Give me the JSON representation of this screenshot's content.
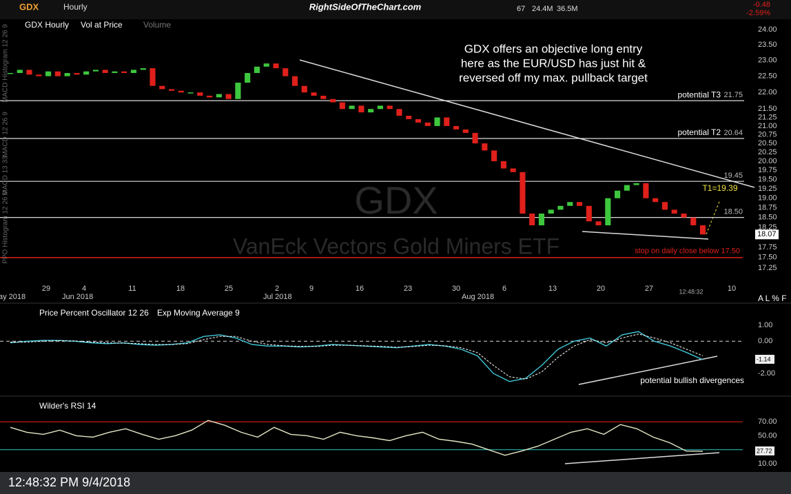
{
  "toolbar": {
    "symbol": "GDX",
    "interval": "Hourly",
    "site": "RightSideOfTheChart.com",
    "stats": [
      "67",
      "24.4M",
      "36.5M"
    ],
    "change": "-0.48",
    "change_pct": "-2.59%"
  },
  "chart_data": [
    {
      "type": "candlestick",
      "legend": [
        "GDX Hourly",
        "Vol at Price",
        "Volume"
      ],
      "watermark": "GDX",
      "watermark_sub": "VanEck Vectors Gold Miners ETF",
      "annotation": [
        "GDX offers an objective long entry",
        "here as the EUR/USD has just hit &",
        "reversed off my max. pullback target"
      ],
      "side_labels": [
        "MACD Histogram 12 26 9",
        "MACD 12 26 9",
        "MACD 13 33",
        "PPO Histogram 12 26 9"
      ],
      "log_scale": true,
      "ylim": [
        17.15,
        24.3
      ],
      "yticks": [
        {
          "value": 24,
          "label": "24.00"
        },
        {
          "value": 23.5,
          "label": "23.50"
        },
        {
          "value": 23,
          "label": "23.00"
        },
        {
          "value": 22.5,
          "label": "22.50"
        },
        {
          "value": 22,
          "label": "22.00"
        },
        {
          "value": 21.5,
          "label": "21.50"
        },
        {
          "value": 21.25,
          "label": "21.25"
        },
        {
          "value": 21,
          "label": "21.00"
        },
        {
          "value": 20.75,
          "label": "20.75"
        },
        {
          "value": 20.5,
          "label": "20.50"
        },
        {
          "value": 20.25,
          "label": "20.25"
        },
        {
          "value": 20,
          "label": "20.00"
        },
        {
          "value": 19.75,
          "label": "19.75"
        },
        {
          "value": 19.5,
          "label": "19.50"
        },
        {
          "value": 19.25,
          "label": "19.25"
        },
        {
          "value": 19,
          "label": "19.00"
        },
        {
          "value": 18.75,
          "label": "18.75"
        },
        {
          "value": 18.5,
          "label": "18.50"
        },
        {
          "value": 18.25,
          "label": "18.25"
        },
        {
          "value": 17.75,
          "label": "17.75"
        },
        {
          "value": 17.5,
          "label": "17.50"
        },
        {
          "value": 17.25,
          "label": "17.25"
        }
      ],
      "levels": [
        {
          "name": "potential T3",
          "value": 21.75
        },
        {
          "name": "potential T2",
          "value": 20.64
        },
        {
          "value": 19.45
        },
        {
          "value": 18.5,
          "value_label": "18.50"
        }
      ],
      "target": "T1=19.39",
      "stop": {
        "value": 17.5,
        "text": "stop on daily close below 17.50",
        "color": "#e0201b"
      },
      "last": 18.07,
      "up_color": "#3ec73e",
      "down_color": "#e0201b",
      "closes": [
        22.6,
        22.7,
        22.55,
        22.5,
        22.65,
        22.5,
        22.6,
        22.55,
        22.65,
        22.7,
        22.6,
        22.65,
        22.6,
        22.7,
        22.75,
        22.2,
        22.1,
        22.05,
        22.0,
        22.0,
        21.9,
        21.85,
        21.95,
        21.8,
        22.3,
        22.6,
        22.8,
        22.9,
        22.75,
        22.5,
        22.2,
        22.0,
        21.9,
        21.8,
        21.7,
        21.5,
        21.6,
        21.4,
        21.5,
        21.6,
        21.5,
        21.3,
        21.2,
        21.1,
        21.0,
        21.25,
        21.0,
        20.9,
        20.8,
        20.5,
        20.3,
        20.0,
        19.8,
        19.7,
        18.6,
        18.3,
        18.6,
        18.7,
        18.8,
        18.9,
        18.8,
        18.4,
        18.3,
        19.0,
        19.2,
        19.35,
        19.4,
        19.0,
        18.9,
        18.7,
        18.6,
        18.5,
        18.3,
        18.07
      ],
      "day_labels": [
        "29",
        "4",
        "11",
        "18",
        "25",
        "2",
        "9",
        "16",
        "23",
        "30",
        "6",
        "13",
        "20",
        "27",
        "10"
      ],
      "month_labels": [
        "ay 2018",
        "Jun 2018",
        "Jul 2018",
        "Aug 2018"
      ],
      "time_label": "12:48:32",
      "axis_buttons": "A L % F"
    },
    {
      "type": "line",
      "legend": [
        "Price Percent Oscillator 12 26",
        "Exp Moving Average 9"
      ],
      "annotation": "potential bullish divergences",
      "ylim": [
        -2.85,
        1.38
      ],
      "yticks": [
        {
          "value": 1,
          "label": "1.00"
        },
        {
          "value": 0,
          "label": "0.00"
        },
        {
          "value": -2,
          "label": "-2.00"
        }
      ],
      "last": -1.14,
      "series": [
        {
          "name": "Price Percent Oscillator 12 26",
          "color": "#3fc8d8",
          "values": [
            -0.1,
            0,
            0.05,
            0.05,
            0,
            -0.1,
            -0.15,
            -0.1,
            -0.2,
            -0.25,
            -0.2,
            -0.1,
            0.3,
            0.4,
            0.2,
            -0.2,
            -0.3,
            -0.3,
            -0.35,
            -0.3,
            -0.2,
            -0.25,
            -0.3,
            -0.35,
            -0.4,
            -0.3,
            -0.2,
            -0.3,
            -0.5,
            -0.9,
            -2.0,
            -2.5,
            -2.3,
            -1.5,
            -0.5,
            0.0,
            0.2,
            -0.3,
            0.4,
            0.6,
            0.0,
            -0.3,
            -0.7,
            -1.14
          ]
        },
        {
          "name": "Exp Moving Average 9",
          "color": "#ffffff",
          "values": [
            -0.05,
            -0.05,
            0,
            0.03,
            0.02,
            -0.05,
            -0.1,
            -0.12,
            -0.15,
            -0.2,
            -0.2,
            -0.15,
            0.1,
            0.3,
            0.3,
            0.0,
            -0.2,
            -0.28,
            -0.32,
            -0.32,
            -0.25,
            -0.25,
            -0.28,
            -0.32,
            -0.37,
            -0.33,
            -0.25,
            -0.28,
            -0.4,
            -0.7,
            -1.5,
            -2.2,
            -2.35,
            -1.9,
            -1.0,
            -0.3,
            0.1,
            -0.1,
            0.2,
            0.45,
            0.2,
            -0.1,
            -0.5,
            -0.9
          ]
        }
      ]
    },
    {
      "type": "line",
      "legend": [
        "Wilder's RSI 14"
      ],
      "ylim": [
        5,
        84
      ],
      "yticks": [
        {
          "value": 70,
          "label": "70.00"
        },
        {
          "value": 50,
          "label": "50.00"
        },
        {
          "value": 10,
          "label": "10.00"
        }
      ],
      "bands": [
        {
          "value": 70,
          "color": "#d81e1e"
        },
        {
          "value": 30,
          "color": "#1fb5b0"
        }
      ],
      "last": 27.72,
      "series": [
        {
          "name": "Wilder's RSI 14",
          "color": "#e8e8c8",
          "values": [
            62,
            55,
            52,
            58,
            50,
            48,
            55,
            60,
            52,
            45,
            50,
            58,
            72,
            65,
            55,
            48,
            62,
            52,
            50,
            45,
            55,
            50,
            47,
            43,
            50,
            55,
            45,
            42,
            38,
            30,
            22,
            28,
            35,
            45,
            55,
            60,
            52,
            66,
            60,
            48,
            40,
            28,
            27.72
          ]
        }
      ]
    }
  ],
  "footer": "12:48:32 PM 9/4/2018"
}
